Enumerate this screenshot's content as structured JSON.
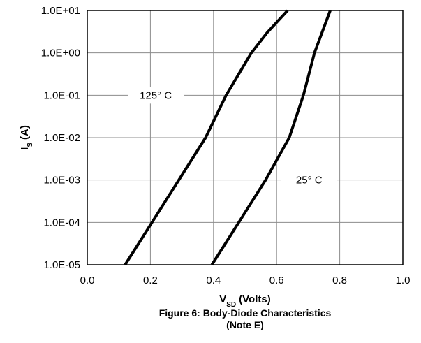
{
  "chart_data": {
    "type": "line",
    "title": "Figure 6: Body-Diode Characteristics",
    "subtitle": "(Note E)",
    "xlabel": "V",
    "xlabel_sub": "SD",
    "xlabel_unit": "(Volts)",
    "ylabel": "I",
    "ylabel_sub": "S",
    "ylabel_unit": "(A)",
    "xlim": [
      0,
      1.0
    ],
    "ylim": [
      1e-05,
      10
    ],
    "yscale": "log",
    "grid": true,
    "x_ticks": [
      "0.0",
      "0.2",
      "0.4",
      "0.6",
      "0.8",
      "1.0"
    ],
    "y_ticks": [
      "1.0E-05",
      "1.0E-04",
      "1.0E-03",
      "1.0E-02",
      "1.0E-01",
      "1.0E+00",
      "1.0E+01"
    ],
    "series": [
      {
        "name": "125° C",
        "x": [
          0.12,
          0.205,
          0.29,
          0.375,
          0.44,
          0.52,
          0.57,
          0.635
        ],
        "y": [
          1e-05,
          0.0001,
          0.001,
          0.01,
          0.1,
          1,
          3,
          10
        ]
      },
      {
        "name": "25° C",
        "x": [
          0.395,
          0.48,
          0.565,
          0.64,
          0.685,
          0.72,
          0.77
        ],
        "y": [
          1e-05,
          0.0001,
          0.001,
          0.01,
          0.1,
          1,
          10
        ]
      }
    ],
    "annotations": [
      {
        "text": "125° C",
        "series": 0
      },
      {
        "text": "25° C",
        "series": 1
      }
    ]
  }
}
